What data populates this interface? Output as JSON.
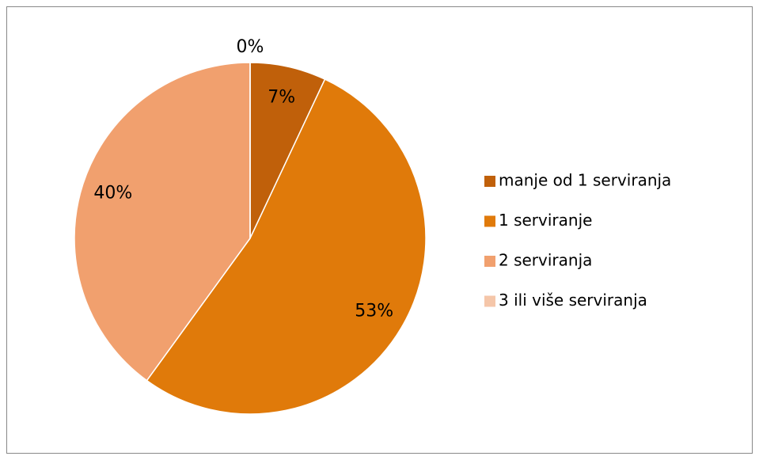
{
  "chart_data": {
    "type": "pie",
    "categories": [
      "manje od 1 serviranja",
      "1 serviranje",
      "2 serviranja",
      "3 ili više serviranja"
    ],
    "values": [
      7,
      53,
      40,
      0
    ],
    "value_labels": [
      "7%",
      "53%",
      "40%",
      "0%"
    ],
    "colors": [
      "#c0600a",
      "#e07a0a",
      "#f1a06e",
      "#f5c6a9"
    ],
    "legend": "right"
  }
}
